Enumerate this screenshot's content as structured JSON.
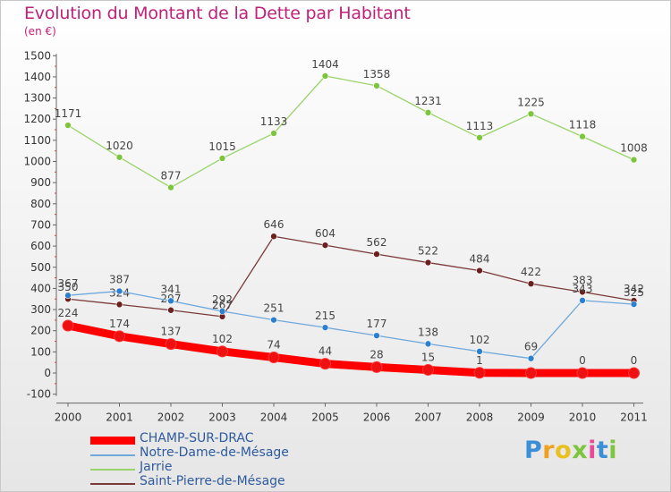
{
  "title": "Evolution du Montant de la Dette par Habitant",
  "subtitle": "(en €)",
  "chart_data": {
    "type": "line",
    "title": "Evolution du Montant de la Dette par Habitant",
    "subtitle": "(en €)",
    "x": [
      "2000",
      "2001",
      "2002",
      "2003",
      "2004",
      "2005",
      "2006",
      "2007",
      "2008",
      "2009",
      "2010",
      "2011"
    ],
    "y_ticks": [
      "-100",
      "0",
      "100",
      "200",
      "300",
      "400",
      "500",
      "600",
      "700",
      "800",
      "900",
      "1000",
      "1100",
      "1200",
      "1300",
      "1400",
      "1500"
    ],
    "ylim": [
      -100,
      1500
    ],
    "grid": false,
    "legend_position": "bottom-left",
    "series": [
      {
        "name": "CHAMP-SUR-DRAC",
        "color": "#ff0000",
        "point_color": "#ee1111",
        "values": [
          224,
          174,
          137,
          102,
          74,
          44,
          28,
          15,
          1,
          0,
          0,
          0
        ],
        "labels": [
          "224",
          "174",
          "137",
          "102",
          "74",
          "44",
          "28",
          "15",
          "1",
          "",
          "0",
          "0"
        ]
      },
      {
        "name": "Notre-Dame-de-Mésage",
        "color": "#6fa8dc",
        "point_color": "#2d7fd0",
        "values": [
          367,
          387,
          341,
          292,
          251,
          215,
          177,
          138,
          102,
          69,
          343,
          325
        ],
        "labels": [
          "367",
          "387",
          "341",
          "292",
          "251",
          "215",
          "177",
          "138",
          "102",
          "69",
          "343",
          "325"
        ]
      },
      {
        "name": "Jarrie",
        "color": "#9ad36a",
        "point_color": "#7cc53d",
        "values": [
          1171,
          1020,
          877,
          1015,
          1133,
          1404,
          1358,
          1231,
          1113,
          1225,
          1118,
          1008
        ],
        "labels": [
          "1171",
          "1020",
          "877",
          "1015",
          "1133",
          "1404",
          "1358",
          "1231",
          "1113",
          "1225",
          "1118",
          "1008"
        ]
      },
      {
        "name": "Saint-Pierre-de-Mésage",
        "color": "#7a3a3a",
        "point_color": "#6b1f1f",
        "values": [
          350,
          324,
          297,
          267,
          646,
          604,
          562,
          522,
          484,
          422,
          383,
          342
        ],
        "labels": [
          "350",
          "324",
          "297",
          "267",
          "646",
          "604",
          "562",
          "522",
          "484",
          "422",
          "383",
          "342"
        ]
      }
    ]
  },
  "legend": [
    {
      "label": "CHAMP-SUR-DRAC"
    },
    {
      "label": "Notre-Dame-de-Mésage"
    },
    {
      "label": "Jarrie"
    },
    {
      "label": "Saint-Pierre-de-Mésage"
    }
  ],
  "logo": {
    "text": "Proxiti",
    "letters": [
      "P",
      "r",
      "o",
      "x",
      "i",
      "t",
      "i"
    ],
    "colors": [
      "#3b8fd6",
      "#f0a020",
      "#e8c020",
      "#7cc53d",
      "#e84a9a",
      "#3b8fd6",
      "#7cc53d"
    ]
  }
}
